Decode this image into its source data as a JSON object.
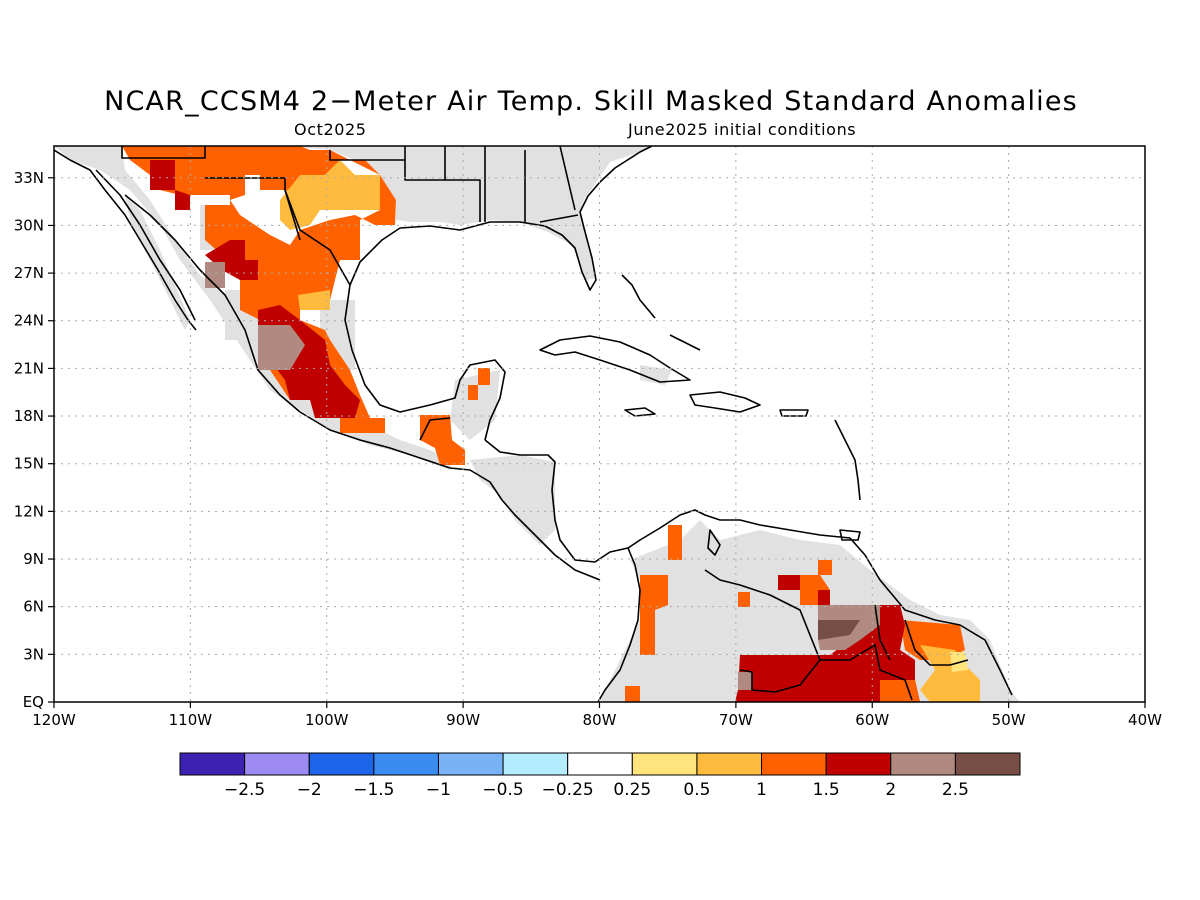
{
  "header": {
    "title": "NCAR_CCSM4 2−Meter Air Temp. Skill Masked Standard Anomalies",
    "target_month": "Oct2025",
    "init_conditions": "June2025 initial conditions"
  },
  "map": {
    "projection": "lat-lon",
    "lon_range": [
      -120,
      -40
    ],
    "lat_range": [
      0,
      35
    ],
    "lon_ticks": [
      {
        "value": -120,
        "label": "120W"
      },
      {
        "value": -110,
        "label": "110W"
      },
      {
        "value": -100,
        "label": "100W"
      },
      {
        "value": -90,
        "label": "90W"
      },
      {
        "value": -80,
        "label": "80W"
      },
      {
        "value": -70,
        "label": "70W"
      },
      {
        "value": -60,
        "label": "60W"
      },
      {
        "value": -50,
        "label": "50W"
      },
      {
        "value": -40,
        "label": "40W"
      }
    ],
    "lat_ticks": [
      {
        "value": 0,
        "label": "EQ"
      },
      {
        "value": 3,
        "label": "3N"
      },
      {
        "value": 6,
        "label": "6N"
      },
      {
        "value": 9,
        "label": "9N"
      },
      {
        "value": 12,
        "label": "12N"
      },
      {
        "value": 15,
        "label": "15N"
      },
      {
        "value": 18,
        "label": "18N"
      },
      {
        "value": 21,
        "label": "21N"
      },
      {
        "value": 24,
        "label": "24N"
      },
      {
        "value": 27,
        "label": "27N"
      },
      {
        "value": 30,
        "label": "30N"
      },
      {
        "value": 33,
        "label": "33N"
      }
    ],
    "grid": true,
    "masked_color": "#e1e1e1"
  },
  "colorbar": {
    "colors": [
      "#3d22b2",
      "#9d8bf3",
      "#1c64e8",
      "#3a8cf0",
      "#79b3f6",
      "#b3ecfc",
      "#ffffff",
      "#ffe57c",
      "#ffbb3e",
      "#ff6100",
      "#c00000",
      "#b08a80",
      "#764e46"
    ],
    "labels": [
      "−2.5",
      "−2",
      "−1.5",
      "−1",
      "−0.5",
      "−0.25",
      "0.25",
      "0.5",
      "1",
      "1.5",
      "2",
      "2.5"
    ]
  }
}
